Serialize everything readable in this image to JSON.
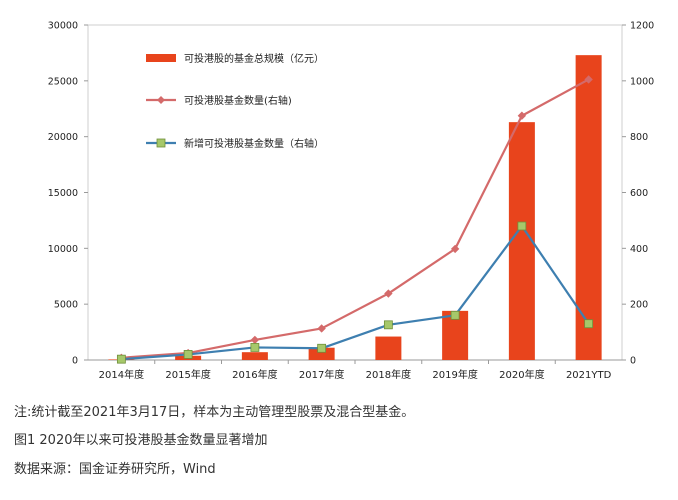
{
  "chart_data": {
    "type": "bar",
    "categories": [
      "2014年度",
      "2015年度",
      "2016年度",
      "2017年度",
      "2018年度",
      "2019年度",
      "2020年度",
      "2021YTD"
    ],
    "series": [
      {
        "name": "可投港股的基金总规模（亿元）",
        "type": "bar",
        "axis": "left",
        "color": "#e8441c",
        "values": [
          50,
          380,
          700,
          1100,
          2100,
          4400,
          21300,
          27300
        ]
      },
      {
        "name": "可投港股基金数量(右轴)",
        "type": "line",
        "axis": "right",
        "color": "#d46a6a",
        "marker": "diamond",
        "values": [
          8,
          25,
          72,
          113,
          238,
          398,
          875,
          1005
        ]
      },
      {
        "name": "新增可投港股基金数量（右轴）",
        "type": "line",
        "axis": "right",
        "color": "#3e7fb0",
        "marker": "square",
        "values": [
          3,
          20,
          45,
          42,
          126,
          160,
          480,
          130
        ]
      }
    ],
    "y_left": {
      "min": 0,
      "max": 30000,
      "ticks": [
        0,
        5000,
        10000,
        15000,
        20000,
        25000,
        30000
      ]
    },
    "y_right": {
      "min": 0,
      "max": 1200,
      "ticks": [
        0,
        200,
        400,
        600,
        800,
        1000,
        1200
      ]
    },
    "legend_position": "top-left"
  },
  "footer": {
    "note": "注:统计截至2021年3月17日，样本为主动管理型股票及混合型基金。",
    "caption": "图1   2020年以来可投港股基金数量显著增加",
    "source": "数据来源：国金证券研究所，Wind"
  }
}
